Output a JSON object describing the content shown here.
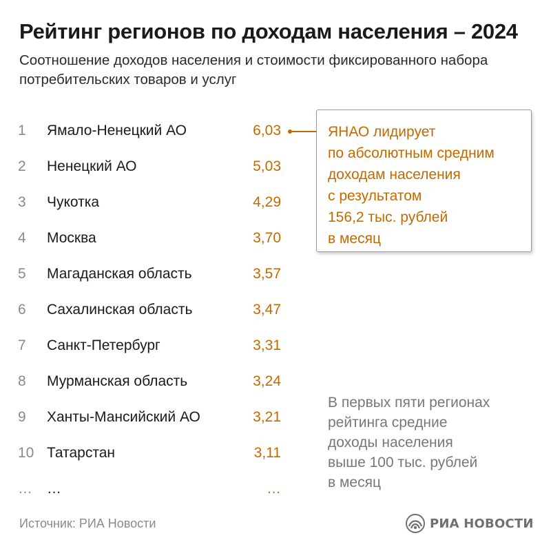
{
  "title": "Рейтинг регионов по доходам населения – 2024",
  "subtitle": "Соотношение доходов населения и стоимости фиксированного набора потребительских товаров и услуг",
  "chart_data": {
    "type": "table",
    "columns": [
      "rank",
      "region",
      "value"
    ],
    "rows": [
      {
        "rank": "1",
        "region": "Ямало-Ненецкий АО",
        "value": "6,03"
      },
      {
        "rank": "2",
        "region": "Ненецкий АО",
        "value": "5,03"
      },
      {
        "rank": "3",
        "region": "Чукотка",
        "value": "4,29"
      },
      {
        "rank": "4",
        "region": "Москва",
        "value": "3,70"
      },
      {
        "rank": "5",
        "region": "Магаданская область",
        "value": "3,57"
      },
      {
        "rank": "6",
        "region": "Сахалинская область",
        "value": "3,47"
      },
      {
        "rank": "7",
        "region": "Санкт-Петербург",
        "value": "3,31"
      },
      {
        "rank": "8",
        "region": "Мурманская область",
        "value": "3,24"
      },
      {
        "rank": "9",
        "region": "Ханты-Мансийский АО",
        "value": "3,21"
      },
      {
        "rank": "10",
        "region": "Татарстан",
        "value": "3,11"
      },
      {
        "rank": "…",
        "region": "…",
        "value": "…"
      }
    ]
  },
  "callout": {
    "lines": [
      "ЯНАО лидирует",
      "по абсолютным средним",
      "доходам населения",
      "с результатом",
      "156,2 тыс. рублей",
      "в месяц"
    ]
  },
  "note": {
    "lines": [
      "В первых пяти регионах",
      "рейтинга средние",
      "доходы населения",
      "выше 100 тыс. рублей",
      "в месяц"
    ]
  },
  "footer": {
    "source": "Источник: РИА Новости",
    "logo_text": "РИА НОВОСТИ"
  },
  "colors": {
    "accent": "#c26a00",
    "callout_border": "#d98c2e",
    "muted": "#8a8a8a"
  }
}
